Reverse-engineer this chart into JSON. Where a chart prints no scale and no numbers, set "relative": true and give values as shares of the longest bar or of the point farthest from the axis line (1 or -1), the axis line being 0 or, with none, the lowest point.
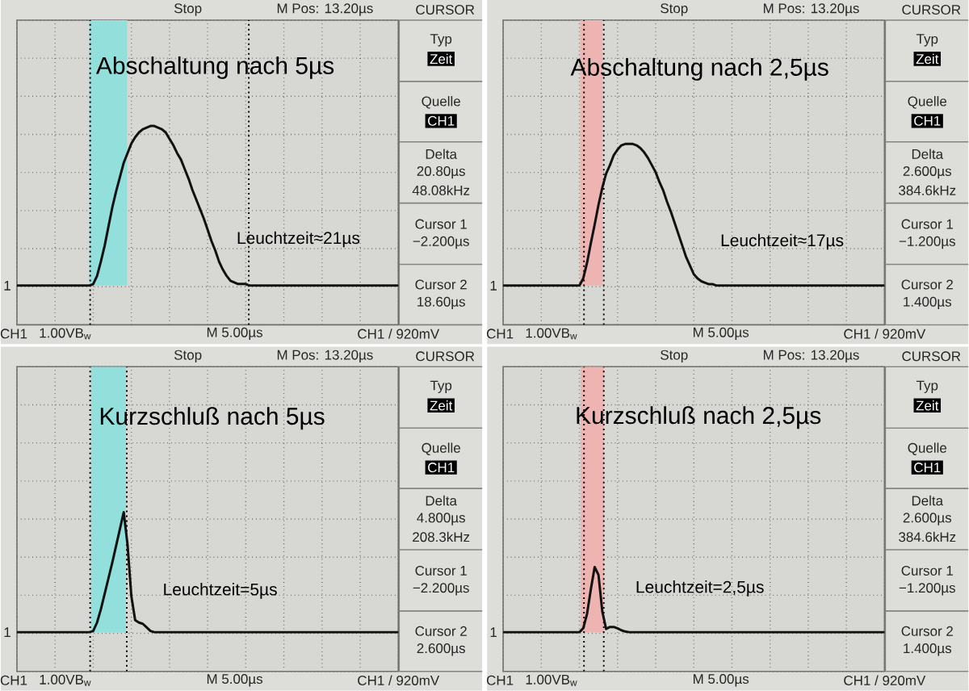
{
  "chart_data": [
    {
      "type": "line",
      "title": "Abschaltung nach 5µs",
      "relative": true,
      "grid": true,
      "line_style": "solid",
      "categories": [
        null,
        null,
        null,
        null,
        null,
        null,
        null,
        null,
        null,
        null,
        null,
        null,
        null,
        null,
        null,
        null,
        null,
        null,
        null,
        null,
        null,
        null,
        null,
        null,
        null,
        null,
        null,
        null,
        null,
        null,
        null,
        null,
        null,
        null,
        null,
        null,
        null,
        null,
        null,
        null,
        null,
        null,
        null,
        null,
        null,
        null,
        null,
        null,
        null,
        null,
        null,
        null,
        null,
        null,
        null,
        null,
        null,
        null,
        null,
        null,
        null,
        null,
        null,
        null,
        null,
        null,
        null,
        null,
        null,
        null,
        null,
        null,
        null,
        null,
        null,
        null,
        null,
        null,
        null,
        null,
        null,
        null,
        null,
        null,
        null,
        null,
        null,
        null,
        null,
        null,
        null,
        null,
        null,
        null,
        null,
        null,
        null,
        null,
        null,
        null,
        null
      ],
      "series": [
        {
          "color": "#111111",
          "values": [
            0,
            0,
            0,
            0,
            0,
            0,
            0,
            0,
            0,
            0,
            0,
            0,
            0,
            0,
            0,
            0,
            0,
            0,
            0,
            0,
            0.01,
            0.06,
            0.15,
            0.25,
            0.37,
            0.49,
            0.59,
            0.68,
            0.77,
            0.83,
            0.89,
            0.93,
            0.96,
            0.98,
            0.99,
            1,
            1,
            0.99,
            0.98,
            0.96,
            0.92,
            0.88,
            0.83,
            0.79,
            0.73,
            0.67,
            0.6,
            0.54,
            0.48,
            0.42,
            0.35,
            0.28,
            0.22,
            0.15,
            0.1,
            0.06,
            0.03,
            0.02,
            0.01,
            0.01,
            0.01,
            0,
            0,
            0,
            0,
            0,
            0,
            0,
            0,
            0,
            0,
            0,
            0,
            0,
            0,
            0,
            0,
            0,
            0,
            0,
            0,
            0,
            0,
            0,
            0,
            0,
            0,
            0,
            0,
            0,
            0,
            0,
            0,
            0,
            0,
            0,
            0,
            0,
            0,
            0,
            0
          ]
        }
      ],
      "annotations": [
        "Leuchtzeit≈21µs",
        "Stop",
        "M Pos: 13.20µs",
        "CURSOR",
        "Typ",
        "Zeit",
        "Quelle",
        "CH1",
        "Delta",
        "20.80µs",
        "48.08kHz",
        "Cursor 1",
        "−2.200µs",
        "Cursor 2",
        "18.60µs",
        "CH1",
        "1.00VB$_{w}$",
        "M 5.00µs",
        "CH1 / 920mV",
        "1"
      ]
    },
    {
      "type": "line",
      "title": "Abschaltung nach 2,5µs",
      "relative": true,
      "grid": true,
      "line_style": "solid",
      "categories": [
        null,
        null,
        null,
        null,
        null,
        null,
        null,
        null,
        null,
        null,
        null,
        null,
        null,
        null,
        null,
        null,
        null,
        null,
        null,
        null,
        null,
        null,
        null,
        null,
        null,
        null,
        null,
        null,
        null,
        null,
        null,
        null,
        null,
        null,
        null,
        null,
        null,
        null,
        null,
        null,
        null,
        null,
        null,
        null,
        null,
        null,
        null,
        null,
        null,
        null,
        null,
        null,
        null,
        null,
        null,
        null,
        null,
        null,
        null,
        null,
        null,
        null,
        null,
        null,
        null,
        null,
        null,
        null,
        null,
        null,
        null,
        null,
        null,
        null,
        null,
        null,
        null,
        null,
        null,
        null,
        null,
        null,
        null,
        null,
        null,
        null,
        null,
        null,
        null,
        null,
        null,
        null,
        null,
        null,
        null,
        null,
        null,
        null,
        null,
        null,
        null
      ],
      "series": [
        {
          "color": "#111111",
          "values": [
            0,
            0,
            0,
            0,
            0,
            0,
            0,
            0,
            0,
            0,
            0,
            0,
            0,
            0,
            0,
            0,
            0,
            0,
            0,
            0,
            0,
            0.05,
            0.16,
            0.3,
            0.43,
            0.57,
            0.69,
            0.79,
            0.85,
            0.92,
            0.96,
            0.99,
            1,
            1,
            1,
            0.99,
            0.97,
            0.94,
            0.9,
            0.85,
            0.8,
            0.73,
            0.67,
            0.59,
            0.52,
            0.44,
            0.36,
            0.28,
            0.2,
            0.14,
            0.08,
            0.05,
            0.03,
            0.02,
            0.01,
            0.01,
            0,
            0,
            0,
            0,
            0,
            0,
            0,
            0,
            0,
            0,
            0,
            0,
            0,
            0,
            0,
            0,
            0,
            0,
            0,
            0,
            0,
            0,
            0,
            0,
            0,
            0,
            0,
            0,
            0,
            0,
            0,
            0,
            0,
            0,
            0,
            0,
            0,
            0,
            0,
            0,
            0,
            0,
            0,
            0,
            0
          ]
        }
      ],
      "annotations": [
        "Leuchtzeit≈17µs",
        "Stop",
        "M Pos: 13.20µs",
        "CURSOR",
        "Typ",
        "Zeit",
        "Quelle",
        "CH1",
        "Delta",
        "2.600µs",
        "384.6kHz",
        "Cursor 1",
        "−1.200µs",
        "Cursor 2",
        "1.400µs",
        "CH1",
        "1.00VB$_{w}$",
        "M 5.00µs",
        "CH1 / 920mV",
        "1"
      ]
    },
    {
      "type": "line",
      "title": "Kurzschluß nach 5µs",
      "relative": true,
      "grid": true,
      "line_style": "solid",
      "categories": [
        null,
        null,
        null,
        null,
        null,
        null,
        null,
        null,
        null,
        null,
        null,
        null,
        null,
        null,
        null,
        null,
        null,
        null,
        null,
        null,
        null,
        null,
        null,
        null,
        null,
        null,
        null,
        null,
        null,
        null,
        null,
        null,
        null,
        null,
        null,
        null,
        null,
        null,
        null,
        null,
        null,
        null,
        null,
        null,
        null,
        null,
        null,
        null,
        null,
        null,
        null,
        null,
        null,
        null,
        null,
        null,
        null,
        null,
        null,
        null,
        null,
        null,
        null,
        null,
        null,
        null,
        null,
        null,
        null,
        null,
        null,
        null,
        null,
        null,
        null,
        null,
        null,
        null,
        null,
        null,
        null,
        null,
        null,
        null,
        null,
        null,
        null,
        null,
        null,
        null,
        null,
        null,
        null,
        null,
        null,
        null,
        null,
        null,
        null,
        null,
        null
      ],
      "series": [
        {
          "color": "#111111",
          "values": [
            0,
            0,
            0,
            0,
            0,
            0,
            0,
            0,
            0,
            0,
            0,
            0,
            0,
            0,
            0,
            0,
            0,
            0,
            0,
            0,
            0.01,
            0.08,
            0.19,
            0.32,
            0.45,
            0.58,
            0.72,
            0.86,
            1,
            0.73,
            0.3,
            0.1,
            0.08,
            0.07,
            0.04,
            0.01,
            0,
            0,
            0,
            0,
            0,
            0,
            0,
            0,
            0,
            0,
            0,
            0,
            0,
            0,
            0,
            0,
            0,
            0,
            0,
            0,
            0,
            0,
            0,
            0,
            0,
            0,
            0,
            0,
            0,
            0,
            0,
            0,
            0,
            0,
            0,
            0,
            0,
            0,
            0,
            0,
            0,
            0,
            0,
            0,
            0,
            0,
            0,
            0,
            0,
            0,
            0,
            0,
            0,
            0,
            0,
            0,
            0,
            0,
            0,
            0,
            0,
            0,
            0,
            0,
            0
          ]
        }
      ],
      "annotations": [
        "Leuchtzeit=5µs",
        "Stop",
        "M Pos: 13.20µs",
        "CURSOR",
        "Typ",
        "Zeit",
        "Quelle",
        "CH1",
        "Delta",
        "4.800µs",
        "208.3kHz",
        "Cursor 1",
        "−2.200µs",
        "Cursor 2",
        "2.600µs",
        "CH1",
        "1.00VB$_{w}$",
        "M 5.00µs",
        "CH1 / 920mV",
        "1"
      ]
    },
    {
      "type": "line",
      "title": "Kurzschluß nach 2,5µs",
      "relative": true,
      "grid": true,
      "line_style": "solid",
      "categories": [
        null,
        null,
        null,
        null,
        null,
        null,
        null,
        null,
        null,
        null,
        null,
        null,
        null,
        null,
        null,
        null,
        null,
        null,
        null,
        null,
        null,
        null,
        null,
        null,
        null,
        null,
        null,
        null,
        null,
        null,
        null,
        null,
        null,
        null,
        null,
        null,
        null,
        null,
        null,
        null,
        null,
        null,
        null,
        null,
        null,
        null,
        null,
        null,
        null,
        null,
        null,
        null,
        null,
        null,
        null,
        null,
        null,
        null,
        null,
        null,
        null,
        null,
        null,
        null,
        null,
        null,
        null,
        null,
        null,
        null,
        null,
        null,
        null,
        null,
        null,
        null,
        null,
        null,
        null,
        null,
        null,
        null,
        null,
        null,
        null,
        null,
        null,
        null,
        null,
        null,
        null,
        null,
        null,
        null,
        null,
        null,
        null,
        null,
        null,
        null,
        null
      ],
      "series": [
        {
          "color": "#111111",
          "values": [
            0,
            0,
            0,
            0,
            0,
            0,
            0,
            0,
            0,
            0,
            0,
            0,
            0,
            0,
            0,
            0,
            0,
            0,
            0,
            0,
            0,
            0.06,
            0.28,
            0.66,
            1,
            0.88,
            0.32,
            0.05,
            0.08,
            0.08,
            0.06,
            0.03,
            0.01,
            0,
            0,
            0,
            0,
            0,
            0,
            0,
            0,
            0,
            0,
            0,
            0,
            0,
            0,
            0,
            0,
            0,
            0,
            0,
            0,
            0,
            0,
            0,
            0,
            0,
            0,
            0,
            0,
            0,
            0,
            0,
            0,
            0,
            0,
            0,
            0,
            0,
            0,
            0,
            0,
            0,
            0,
            0,
            0,
            0,
            0,
            0,
            0,
            0,
            0,
            0,
            0,
            0,
            0,
            0,
            0,
            0,
            0,
            0,
            0,
            0,
            0,
            0,
            0,
            0,
            0,
            0,
            0
          ]
        }
      ],
      "annotations": [
        "Leuchtzeit=2,5µs",
        "Stop",
        "M Pos: 13.20µs",
        "CURSOR",
        "Typ",
        "Zeit",
        "Quelle",
        "CH1",
        "Delta",
        "2.600µs",
        "384.6kHz",
        "Cursor 1",
        "−1.200µs",
        "Cursor 2",
        "1.400µs",
        "CH1",
        "1.00VB$_{w}$",
        "M 5.00µs",
        "CH1 / 920mV",
        "1"
      ]
    }
  ]
}
